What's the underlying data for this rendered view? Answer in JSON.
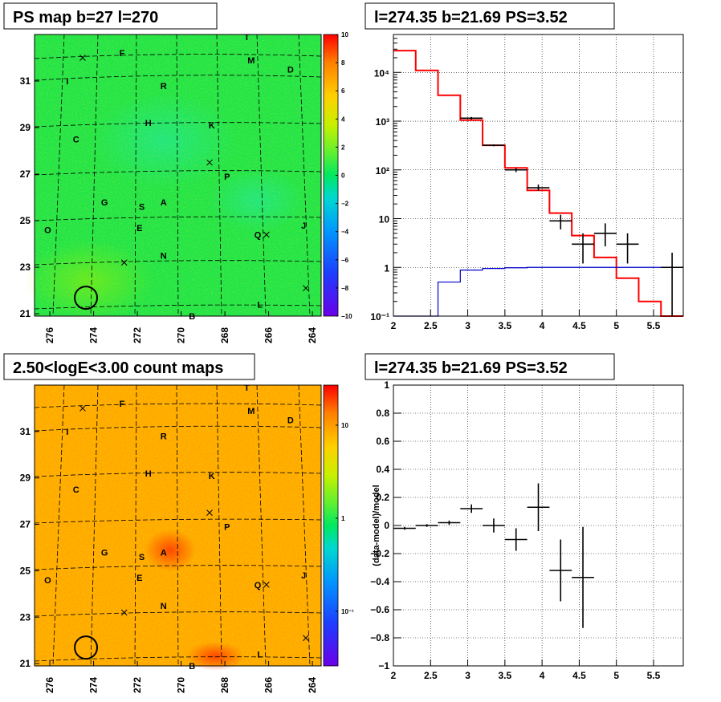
{
  "chart_data": [
    {
      "type": "heatmap",
      "title": "PS map b=27 l=270",
      "x_ticks": [
        "276",
        "274",
        "272",
        "270",
        "268",
        "266",
        "264"
      ],
      "y_ticks": [
        "21",
        "23",
        "25",
        "27",
        "29",
        "31"
      ],
      "xlim": [
        276.7,
        263.6
      ],
      "ylim": [
        20.9,
        33.0
      ],
      "colorbar": {
        "min": -10,
        "max": 10,
        "ticks": [
          "10",
          "8",
          "6",
          "4",
          "2",
          "0",
          "−2",
          "−4",
          "−6",
          "−8",
          "−10"
        ]
      },
      "sources": [
        {
          "label": "T",
          "l": 267.0,
          "b": 32.9
        },
        {
          "label": "F",
          "l": 272.7,
          "b": 32.2
        },
        {
          "label": "M",
          "l": 266.8,
          "b": 31.9
        },
        {
          "label": "D",
          "l": 265.0,
          "b": 31.5
        },
        {
          "label": "I",
          "l": 275.2,
          "b": 31.0
        },
        {
          "label": "R",
          "l": 270.8,
          "b": 30.8
        },
        {
          "label": "H",
          "l": 271.5,
          "b": 29.2
        },
        {
          "label": "K",
          "l": 268.6,
          "b": 29.1
        },
        {
          "label": "C",
          "l": 274.8,
          "b": 28.5
        },
        {
          "label": "P",
          "l": 267.9,
          "b": 26.9
        },
        {
          "label": "G",
          "l": 273.5,
          "b": 25.8
        },
        {
          "label": "A",
          "l": 270.8,
          "b": 25.8
        },
        {
          "label": "S",
          "l": 271.8,
          "b": 25.6
        },
        {
          "label": "O",
          "l": 276.1,
          "b": 24.6
        },
        {
          "label": "E",
          "l": 271.9,
          "b": 24.7
        },
        {
          "label": "Q",
          "l": 266.5,
          "b": 24.4
        },
        {
          "label": "J",
          "l": 264.4,
          "b": 24.8
        },
        {
          "label": "N",
          "l": 270.8,
          "b": 23.5
        },
        {
          "label": "L",
          "l": 266.4,
          "b": 21.4
        },
        {
          "label": "B",
          "l": 269.5,
          "b": 20.9
        }
      ],
      "crosses": [
        {
          "l": 274.5,
          "b": 32.0
        },
        {
          "l": 268.7,
          "b": 27.5
        },
        {
          "l": 266.1,
          "b": 24.4
        },
        {
          "l": 272.6,
          "b": 23.2
        },
        {
          "l": 264.3,
          "b": 22.1
        }
      ],
      "circle": {
        "l": 274.35,
        "b": 21.69
      }
    },
    {
      "type": "line",
      "title": "l=274.35 b=21.69 PS=3.52",
      "yscale": "log",
      "xlim": [
        2,
        5.9
      ],
      "ylim": [
        0.1,
        60000
      ],
      "x_ticks": [
        "2",
        "2.5",
        "3",
        "3.5",
        "4",
        "4.5",
        "5",
        "5.5"
      ],
      "y_ticks": [
        "10⁻¹",
        "1",
        "10",
        "10²",
        "10³",
        "10⁴"
      ],
      "series": [
        {
          "kind": "step",
          "color": "#ff0000",
          "edges": [
            2.0,
            2.3,
            2.6,
            2.9,
            3.2,
            3.5,
            3.8,
            4.1,
            4.4,
            4.7,
            5.0,
            5.3,
            5.6,
            5.9
          ],
          "values": [
            28000,
            11000,
            3400,
            1050,
            320,
            110,
            38,
            13,
            4.5,
            1.6,
            0.6,
            0.2,
            0.07
          ]
        },
        {
          "kind": "step",
          "color": "#0000cc",
          "edges": [
            2.0,
            2.3,
            2.6,
            2.9,
            3.2,
            3.5,
            3.8,
            4.1,
            4.4,
            4.7,
            5.0,
            5.3,
            5.6,
            5.9
          ],
          "values": [
            0.05,
            0.1,
            0.5,
            0.88,
            0.95,
            0.98,
            1.0,
            1.0,
            1.0,
            1.0,
            1.0,
            1.0,
            1.0
          ]
        },
        {
          "kind": "errorbars",
          "color": "#000000",
          "points": [
            {
              "x": 3.05,
              "xerr": 0.15,
              "y": 1150,
              "lo": 1080,
              "hi": 1220
            },
            {
              "x": 3.35,
              "xerr": 0.15,
              "y": 320,
              "lo": 305,
              "hi": 335
            },
            {
              "x": 3.65,
              "xerr": 0.15,
              "y": 100,
              "lo": 90,
              "hi": 110
            },
            {
              "x": 3.95,
              "xerr": 0.15,
              "y": 43,
              "lo": 37,
              "hi": 50
            },
            {
              "x": 4.25,
              "xerr": 0.15,
              "y": 9,
              "lo": 6,
              "hi": 12
            },
            {
              "x": 4.55,
              "xerr": 0.15,
              "y": 3,
              "lo": 1.2,
              "hi": 5
            },
            {
              "x": 4.85,
              "xerr": 0.15,
              "y": 5,
              "lo": 2.7,
              "hi": 8
            },
            {
              "x": 5.15,
              "xerr": 0.15,
              "y": 3,
              "lo": 1.2,
              "hi": 5
            },
            {
              "x": 5.75,
              "xerr": 0.15,
              "y": 1,
              "lo": 0.1,
              "hi": 2
            }
          ]
        }
      ]
    },
    {
      "type": "heatmap",
      "title": "2.50<logE<3.00 count maps",
      "x_ticks": [
        "276",
        "274",
        "272",
        "270",
        "268",
        "266",
        "264"
      ],
      "y_ticks": [
        "21",
        "23",
        "25",
        "27",
        "29",
        "31"
      ],
      "colorbar": {
        "scale": "log",
        "ticks": [
          "10",
          "1",
          "10⁻¹"
        ]
      }
    },
    {
      "type": "scatter",
      "title": "l=274.35 b=21.69 PS=3.52",
      "ylabel": "(data-model)/model",
      "xlim": [
        2,
        5.9
      ],
      "ylim": [
        -1,
        1
      ],
      "x_ticks": [
        "2",
        "2.5",
        "3",
        "3.5",
        "4",
        "4.5",
        "5",
        "5.5"
      ],
      "y_ticks": [
        "1",
        "0.8",
        "0.6",
        "0.4",
        "0.2",
        "0",
        "−0.2",
        "−0.4",
        "−0.6",
        "−0.8",
        "−1"
      ],
      "points": [
        {
          "x": 2.15,
          "xerr": 0.15,
          "y": -0.02,
          "yerr": 0.01
        },
        {
          "x": 2.45,
          "xerr": 0.15,
          "y": 0.0,
          "yerr": 0.01
        },
        {
          "x": 2.75,
          "xerr": 0.15,
          "y": 0.02,
          "yerr": 0.015
        },
        {
          "x": 3.05,
          "xerr": 0.15,
          "y": 0.12,
          "yerr": 0.03
        },
        {
          "x": 3.35,
          "xerr": 0.15,
          "y": 0.0,
          "yerr": 0.05
        },
        {
          "x": 3.65,
          "xerr": 0.15,
          "y": -0.1,
          "yerr": 0.08
        },
        {
          "x": 3.95,
          "xerr": 0.15,
          "y": 0.13,
          "yerr": 0.17
        },
        {
          "x": 4.25,
          "xerr": 0.15,
          "y": -0.32,
          "yerr": 0.22
        },
        {
          "x": 4.55,
          "xerr": 0.15,
          "y": -0.37,
          "yerr": 0.36
        }
      ]
    }
  ]
}
